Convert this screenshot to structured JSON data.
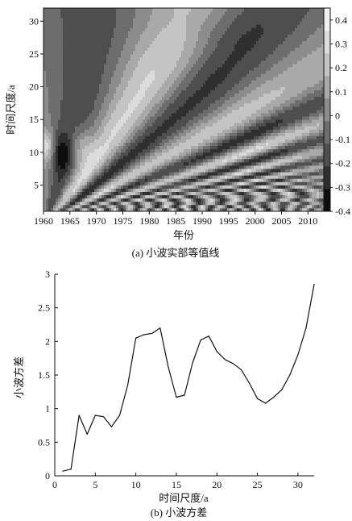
{
  "chart_data": [
    {
      "type": "heatmap",
      "caption": "(a) 小波实部等值线",
      "xlabel": "年份",
      "ylabel": "时间尺度/a",
      "xlim": [
        1960,
        2013
      ],
      "ylim": [
        1,
        32
      ],
      "xticks": [
        "1960",
        "1965",
        "1970",
        "1975",
        "1980",
        "1985",
        "1990",
        "1995",
        "2000",
        "2005",
        "2010"
      ],
      "yticks": [
        "5",
        "10",
        "15",
        "20",
        "25",
        "30"
      ],
      "colorbar": {
        "range": [
          -0.4,
          0.45
        ],
        "ticks": [
          "0.4",
          "0.3",
          "0.2",
          "0.1",
          "0",
          "-0.1",
          "-0.2",
          "-0.3",
          "-0.4"
        ]
      },
      "legend": "colorbar-right",
      "colormap": [
        "#0e0e0e",
        "#2f2f2f",
        "#4e4e4e",
        "#6d6d6d",
        "#8c8c8c",
        "#a9a9a9",
        "#c4c4c4",
        "#dcdcdc",
        "#f1f1f1"
      ]
    },
    {
      "type": "line",
      "caption": "(b) 小波方差",
      "xlabel": "时间尺度/a",
      "ylabel": "小波方差",
      "xlim": [
        0,
        32
      ],
      "ylim": [
        0,
        3
      ],
      "xticks": [
        "0",
        "5",
        "10",
        "15",
        "20",
        "25",
        "30"
      ],
      "yticks": [
        "0",
        "0.5",
        "1",
        "1.5",
        "2",
        "2.5",
        "3"
      ],
      "series": [
        {
          "x": [
            1,
            2,
            3,
            4,
            5,
            6,
            7,
            8,
            9,
            10,
            11,
            12,
            13,
            14,
            15,
            16,
            17,
            18,
            19,
            20,
            21,
            22,
            23,
            24,
            25,
            26,
            27,
            28,
            29,
            30,
            31,
            32
          ],
          "values": [
            0.07,
            0.1,
            0.9,
            0.62,
            0.9,
            0.88,
            0.73,
            0.9,
            1.35,
            2.05,
            2.1,
            2.12,
            2.2,
            1.62,
            1.17,
            1.2,
            1.68,
            2.02,
            2.08,
            1.85,
            1.73,
            1.67,
            1.58,
            1.38,
            1.15,
            1.08,
            1.17,
            1.28,
            1.5,
            1.8,
            2.2,
            2.85
          ]
        }
      ],
      "grid": false,
      "line_color": "#111111"
    }
  ]
}
